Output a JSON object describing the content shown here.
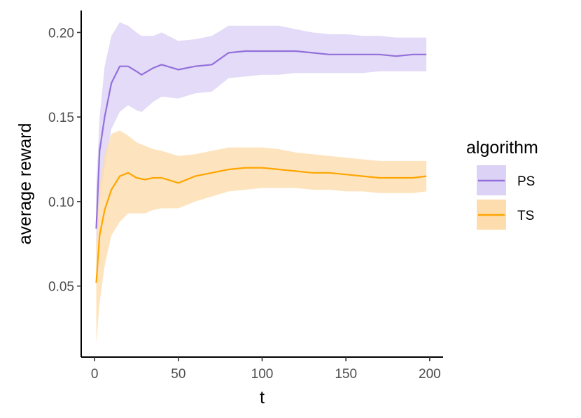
{
  "chart_data": {
    "type": "line",
    "xlabel": "t",
    "ylabel": "average reward",
    "xlim": [
      -8,
      208
    ],
    "ylim": [
      0.008,
      0.213
    ],
    "xticks": [
      0,
      50,
      100,
      150,
      200
    ],
    "yticks": [
      0.05,
      0.1,
      0.15,
      0.2
    ],
    "xtick_labels": [
      "0",
      "50",
      "100",
      "150",
      "200"
    ],
    "ytick_labels": [
      "0.05",
      "0.10",
      "0.15",
      "0.20"
    ],
    "grid": false,
    "legend": {
      "title": "algorithm",
      "position": "right"
    },
    "series": [
      {
        "name": "PS",
        "color": "#9370DB",
        "band_color": "#DCD2F5",
        "x": [
          1,
          3,
          6,
          10,
          15,
          20,
          25,
          28,
          35,
          40,
          50,
          60,
          70,
          80,
          90,
          100,
          110,
          120,
          130,
          140,
          150,
          160,
          170,
          180,
          190,
          198
        ],
        "mean": [
          0.084,
          0.13,
          0.15,
          0.17,
          0.18,
          0.18,
          0.177,
          0.175,
          0.179,
          0.181,
          0.178,
          0.18,
          0.181,
          0.188,
          0.189,
          0.189,
          0.189,
          0.189,
          0.188,
          0.187,
          0.187,
          0.187,
          0.187,
          0.186,
          0.187,
          0.187
        ],
        "upper": [
          0.11,
          0.15,
          0.18,
          0.198,
          0.206,
          0.204,
          0.2,
          0.198,
          0.198,
          0.2,
          0.195,
          0.196,
          0.198,
          0.204,
          0.204,
          0.204,
          0.204,
          0.202,
          0.2,
          0.199,
          0.199,
          0.198,
          0.198,
          0.197,
          0.197,
          0.197
        ],
        "lower": [
          0.06,
          0.1,
          0.12,
          0.143,
          0.153,
          0.157,
          0.154,
          0.153,
          0.159,
          0.162,
          0.161,
          0.164,
          0.165,
          0.173,
          0.174,
          0.175,
          0.175,
          0.176,
          0.176,
          0.176,
          0.176,
          0.176,
          0.177,
          0.177,
          0.177,
          0.177
        ]
      },
      {
        "name": "TS",
        "color": "#FFA500",
        "band_color": "#FDDDAE",
        "x": [
          1,
          3,
          6,
          10,
          15,
          20,
          25,
          30,
          35,
          40,
          50,
          60,
          70,
          80,
          90,
          100,
          110,
          120,
          130,
          140,
          150,
          160,
          170,
          180,
          190,
          198
        ],
        "mean": [
          0.052,
          0.08,
          0.095,
          0.107,
          0.115,
          0.117,
          0.114,
          0.113,
          0.114,
          0.114,
          0.111,
          0.115,
          0.117,
          0.119,
          0.12,
          0.12,
          0.119,
          0.118,
          0.117,
          0.117,
          0.116,
          0.115,
          0.114,
          0.114,
          0.114,
          0.115
        ],
        "upper": [
          0.075,
          0.11,
          0.128,
          0.14,
          0.142,
          0.139,
          0.135,
          0.133,
          0.131,
          0.13,
          0.127,
          0.128,
          0.13,
          0.132,
          0.132,
          0.132,
          0.131,
          0.129,
          0.128,
          0.127,
          0.126,
          0.125,
          0.124,
          0.124,
          0.124,
          0.124
        ],
        "lower": [
          0.016,
          0.04,
          0.062,
          0.08,
          0.088,
          0.093,
          0.093,
          0.093,
          0.095,
          0.096,
          0.096,
          0.1,
          0.103,
          0.106,
          0.107,
          0.108,
          0.108,
          0.108,
          0.107,
          0.107,
          0.106,
          0.106,
          0.105,
          0.105,
          0.105,
          0.106
        ]
      }
    ]
  }
}
